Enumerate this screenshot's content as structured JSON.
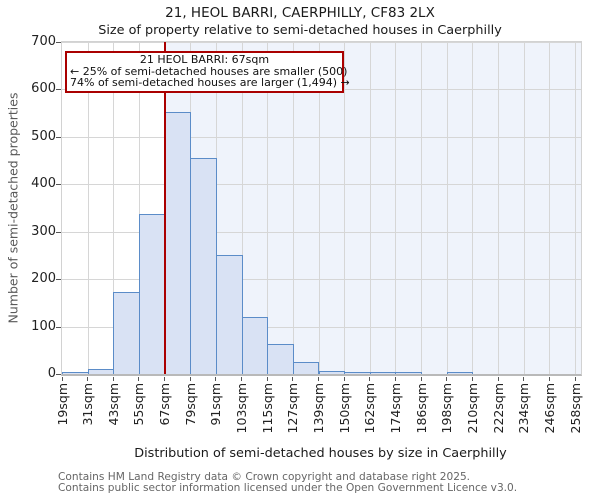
{
  "page": {
    "title": "21, HEOL BARRI, CAERPHILLY, CF83 2LX",
    "subtitle": "Size of property relative to semi-detached houses in Caerphilly"
  },
  "annotation": {
    "line1": "21 HEOL BARRI: 67sqm",
    "line2": "← 25% of semi-detached houses are smaller (500)",
    "line3": "74% of semi-detached houses are larger (1,494) →"
  },
  "footer": {
    "line1": "Contains HM Land Registry data © Crown copyright and database right 2025.",
    "line2": "Contains public sector information licensed under the Open Government Licence v3.0."
  },
  "chart_data": {
    "type": "bar",
    "title": "21, HEOL BARRI, CAERPHILLY, CF83 2LX",
    "subtitle": "Size of property relative to semi-detached houses in Caerphilly",
    "xlabel": "Distribution of semi-detached houses by size in Caerphilly",
    "ylabel": "Number of semi-detached properties",
    "x_tick_labels": [
      "19sqm",
      "31sqm",
      "43sqm",
      "55sqm",
      "67sqm",
      "79sqm",
      "91sqm",
      "103sqm",
      "115sqm",
      "127sqm",
      "139sqm",
      "150sqm",
      "162sqm",
      "174sqm",
      "186sqm",
      "198sqm",
      "210sqm",
      "222sqm",
      "234sqm",
      "246sqm",
      "258sqm"
    ],
    "bin_starts_sqm": [
      19,
      31,
      43,
      55,
      67,
      79,
      91,
      103,
      115,
      127,
      139,
      150,
      162,
      174,
      186,
      198,
      210,
      222,
      234,
      246
    ],
    "values": [
      2,
      10,
      173,
      338,
      553,
      455,
      250,
      120,
      63,
      25,
      7,
      4,
      2,
      2,
      0,
      2,
      0,
      0,
      0,
      0
    ],
    "ylim": [
      0,
      700
    ],
    "y_ticks": [
      0,
      100,
      200,
      300,
      400,
      500,
      600,
      700
    ],
    "grid": "on",
    "legend": "none",
    "marker": {
      "value_sqm": 67,
      "tick_index": 4,
      "label": "21 HEOL BARRI: 67sqm"
    },
    "colors": {
      "bar_fill": "#d9e2f4",
      "bar_edge": "#5b8cc8",
      "marker_line": "#aa0000",
      "shade_right_of_marker": "#eff3fb",
      "gridline": "#d6d6d6",
      "annotation_border": "#aa0000"
    }
  }
}
